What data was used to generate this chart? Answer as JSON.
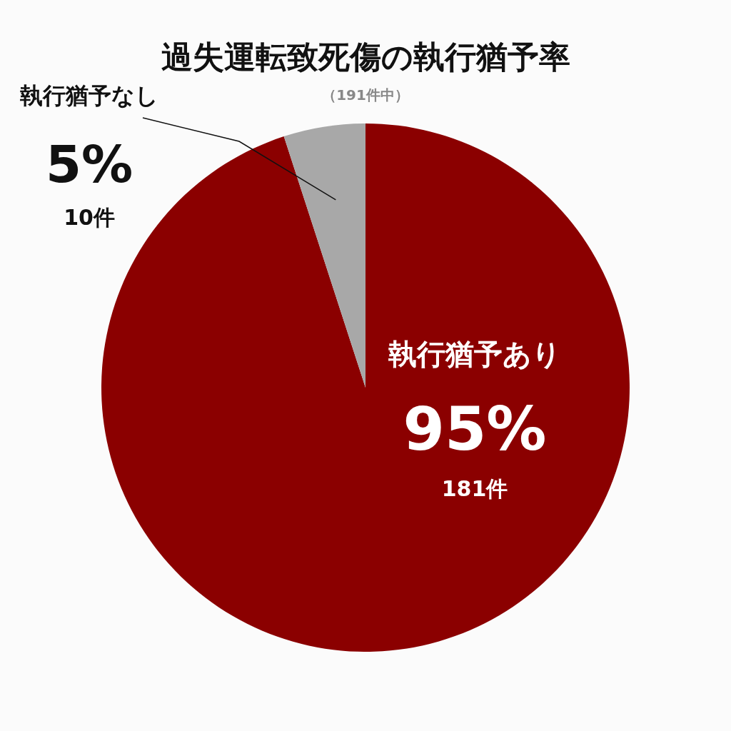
{
  "chart_data": {
    "type": "pie",
    "title": "過失運転致死傷の執行猶予率",
    "subtitle": "（191件中）",
    "categories": [
      "執行猶予あり",
      "執行猶予なし"
    ],
    "values": [
      95,
      5
    ],
    "colors": [
      "#8b0000",
      "#a8a8a8"
    ],
    "value_labels": [
      "95%",
      "5%"
    ],
    "annotations": [
      {
        "text": "181件",
        "x": "執行猶予あり"
      },
      {
        "text": "10件",
        "x": "執行猶予なし"
      }
    ],
    "legend": false
  }
}
